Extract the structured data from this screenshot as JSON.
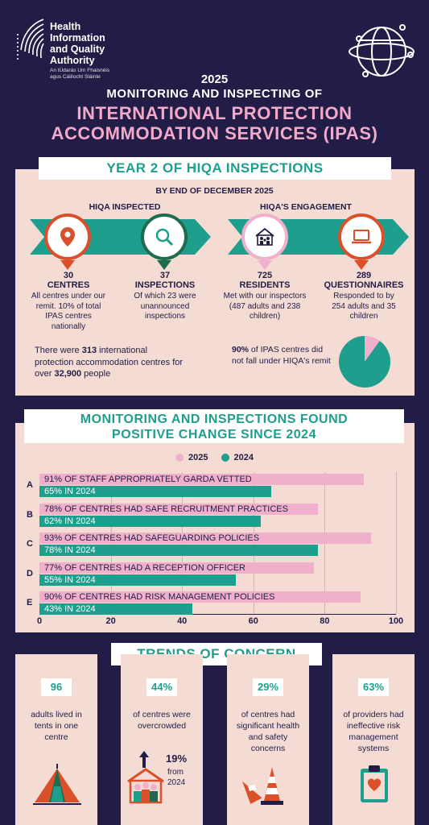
{
  "header": {
    "org_name_line1": "Health",
    "org_name_line2": "Information",
    "org_name_line3": "and Quality",
    "org_name_line4": "Authority",
    "irish_line1": "An tÚdarás Um Fhaisnéis",
    "irish_line2": "agus Cáilíocht Sláinte",
    "year": "2025",
    "subtitle": "MONITORING AND INSPECTING OF",
    "title_line1": "INTERNATIONAL PROTECTION",
    "title_line2": "ACCOMMODATION SERVICES (IPAS)"
  },
  "section1": {
    "heading": "YEAR 2 OF HIQA INSPECTIONS",
    "subheading": "BY END OF DECEMBER 2025",
    "left_label": "HIQA INSPECTED",
    "right_label": "HIQA'S ENGAGEMENT",
    "stats": [
      {
        "number": "30",
        "label": "CENTRES",
        "desc": "All centres under our remit. 10% of total IPAS centres nationally",
        "icon": "location-pin-icon",
        "color": "#d9502b"
      },
      {
        "number": "37",
        "label": "INSPECTIONS",
        "desc": "Of which 23 were unannounced inspections",
        "icon": "magnifier-icon",
        "color": "#1e6b4e"
      },
      {
        "number": "725",
        "label": "RESIDENTS",
        "desc": "Met with our inspectors (487 adults and 238 children)",
        "icon": "people-house-icon",
        "color": "#f0b0cb"
      },
      {
        "number": "289",
        "label": "QUESTIONNAIRES",
        "desc": "Responded to by 254 adults and 35 children",
        "icon": "laptop-icon",
        "color": "#d9502b"
      }
    ],
    "centres_note_pre": "There were ",
    "centres_note_num1": "313",
    "centres_note_mid": " international protection accommodation centres for over ",
    "centres_note_num2": "32,900",
    "centres_note_post": " people",
    "pie_note_pct": "90%",
    "pie_note_text": " of IPAS centres did not fall under HIQA's remit",
    "pie_value_pct": 90
  },
  "section2": {
    "heading_line1": "MONITORING AND INSPECTIONS FOUND",
    "heading_line2": "POSITIVE CHANGE SINCE 2024"
  },
  "chart_data": {
    "type": "bar",
    "orientation": "horizontal",
    "categories": [
      "A",
      "B",
      "C",
      "D",
      "E"
    ],
    "series": [
      {
        "name": "2025",
        "color": "#f0b0cb",
        "values": [
          91,
          78,
          93,
          77,
          90
        ],
        "labels": [
          "91% OF STAFF APPROPRIATELY GARDA VETTED",
          "78% OF CENTRES HAD SAFE RECRUITMENT PRACTICES",
          "93% OF CENTRES HAD SAFEGUARDING POLICIES",
          "77% OF CENTRES HAD A RECEPTION OFFICER",
          "90% OF CENTRES HAD RISK MANAGEMENT POLICIES"
        ]
      },
      {
        "name": "2024",
        "color": "#1e9e8c",
        "values": [
          65,
          62,
          78,
          55,
          43
        ],
        "labels": [
          "65% IN 2024",
          "62% IN 2024",
          "78% IN 2024",
          "55% IN 2024",
          "43% IN 2024"
        ]
      }
    ],
    "xlim": [
      0,
      100
    ],
    "ticks": [
      "0",
      "20",
      "40",
      "60",
      "80",
      "100"
    ],
    "legend_placement": "top-center",
    "grid": true
  },
  "section3": {
    "heading": "TRENDS OF CONCERN",
    "cards": [
      {
        "value": "96",
        "text": "adults lived in tents in one centre",
        "icon": "tent-icon"
      },
      {
        "value": "44%",
        "text": "of centres were overcrowded",
        "icon": "crowded-house-icon",
        "trend_value": "19%",
        "trend_text_line1": "from",
        "trend_text_line2": "2024"
      },
      {
        "value": "29%",
        "text": "of centres had significant health and safety concerns",
        "icon": "traffic-cone-icon"
      },
      {
        "value": "63%",
        "text": "of providers had ineffective risk management systems",
        "icon": "clipboard-heart-icon"
      }
    ]
  }
}
